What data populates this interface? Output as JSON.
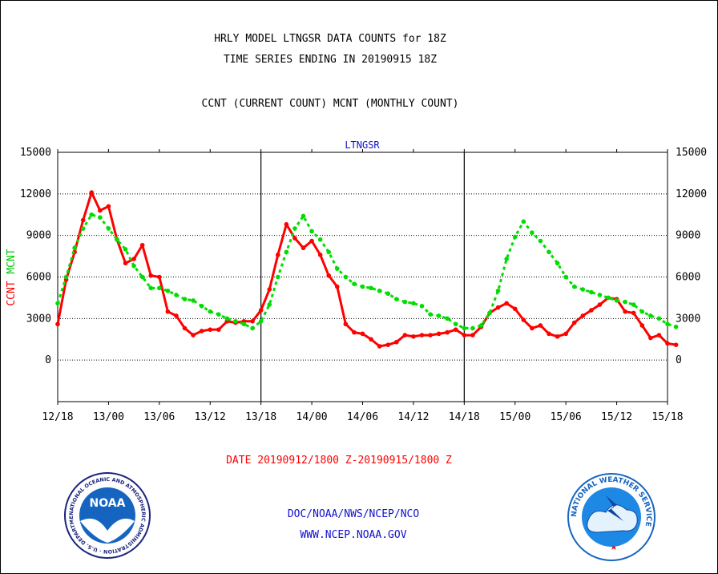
{
  "chart_data": {
    "type": "line",
    "title_lines": [
      "HRLY MODEL LTNGSR DATA COUNTS for 18Z",
      "TIME SERIES ENDING IN 20190915 18Z"
    ],
    "subtitle": "CCNT (CURRENT COUNT) MCNT (MONTHLY COUNT)",
    "plot_label": "LTNGSR",
    "ylabel_parts": [
      "CCNT",
      "MCNT"
    ],
    "xlabel": "DATE 20190912/1800 Z-20190915/1800 Z",
    "ylim": [
      -3000,
      15000
    ],
    "yticks": [
      0,
      3000,
      6000,
      9000,
      12000,
      15000
    ],
    "ytick_labels": [
      "0",
      "3000",
      "6000",
      "9000",
      "12000",
      "15000"
    ],
    "xlim": [
      0,
      72
    ],
    "xticks": [
      0,
      6,
      12,
      18,
      24,
      30,
      36,
      42,
      48,
      54,
      60,
      66,
      72
    ],
    "xtick_labels": [
      "12/18",
      "13/00",
      "13/06",
      "13/12",
      "13/18",
      "14/00",
      "14/06",
      "14/12",
      "14/18",
      "15/00",
      "15/06",
      "15/12",
      "15/18"
    ],
    "grid": true,
    "day_separators": [
      24,
      48
    ],
    "series": [
      {
        "name": "CCNT",
        "color": "#ff0000",
        "style": "solid",
        "values": [
          2600,
          5800,
          7800,
          10100,
          12100,
          10800,
          11100,
          8700,
          7000,
          7300,
          8300,
          6100,
          6000,
          3500,
          3200,
          2300,
          1800,
          2100,
          2200,
          2200,
          2800,
          2700,
          2800,
          2800,
          3600,
          5100,
          7600,
          9800,
          8800,
          8100,
          8600,
          7600,
          6100,
          5300,
          2600,
          2000,
          1900,
          1500,
          1000,
          1100,
          1300,
          1800,
          1700,
          1800,
          1800,
          1900,
          2000,
          2200,
          1800,
          1800,
          2400,
          3400,
          3800,
          4100,
          3700,
          2900,
          2300,
          2500,
          1900,
          1700,
          1900,
          2700,
          3200,
          3600,
          4000,
          4500,
          4400,
          3500,
          3400,
          2500,
          1600,
          1800,
          1200,
          1100
        ]
      },
      {
        "name": "MCNT",
        "color": "#00dd00",
        "style": "dotted",
        "values": [
          4100,
          6000,
          8100,
          9500,
          10500,
          10300,
          9500,
          8700,
          8000,
          6800,
          6000,
          5200,
          5200,
          5000,
          4700,
          4400,
          4300,
          3900,
          3500,
          3300,
          3000,
          2800,
          2600,
          2300,
          2800,
          4000,
          6000,
          7800,
          9500,
          10400,
          9300,
          8700,
          7800,
          6600,
          6000,
          5500,
          5300,
          5200,
          5000,
          4800,
          4400,
          4200,
          4100,
          3900,
          3300,
          3200,
          3000,
          2600,
          2300,
          2300,
          2500,
          3400,
          5000,
          7300,
          8900,
          10000,
          9200,
          8600,
          7800,
          7000,
          6000,
          5300,
          5100,
          4900,
          4700,
          4500,
          4300,
          4200,
          4000,
          3500,
          3200,
          3000,
          2600,
          2400
        ]
      }
    ]
  },
  "footer": {
    "agency_line": "DOC/NOAA/NWS/NCEP/NCO",
    "url_line": "WWW.NCEP.NOAA.GOV",
    "noaa_logo_text": "NOAA",
    "noaa_logo_ring": "NATIONAL OCEANIC AND ATMOSPHERIC ADMINISTRATION · U.S. DEPARTMENT OF COMMERCE ·",
    "nws_logo_ring": "NATIONAL WEATHER SERVICE"
  }
}
